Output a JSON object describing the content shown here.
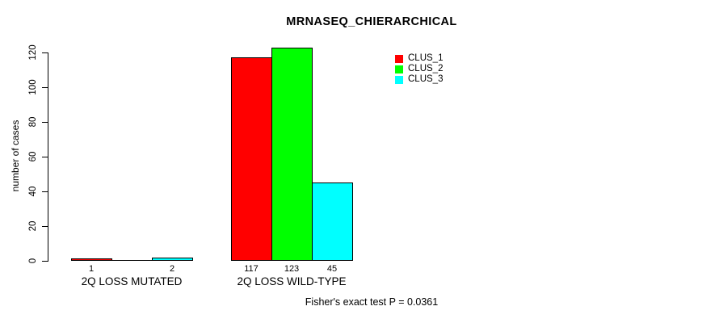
{
  "chart_data": {
    "type": "bar",
    "title": "MRNASEQ_CHIERARCHICAL",
    "xlabel": "",
    "ylabel": "number of cases",
    "ylim": [
      0,
      120
    ],
    "yticks": [
      0,
      20,
      40,
      60,
      80,
      100,
      120
    ],
    "categories": [
      "2Q LOSS MUTATED",
      "2Q LOSS WILD-TYPE"
    ],
    "series": [
      {
        "name": "CLUS_1",
        "color": "#ff0000",
        "values": [
          1,
          117
        ]
      },
      {
        "name": "CLUS_2",
        "color": "#00ff00",
        "values": [
          0,
          123
        ]
      },
      {
        "name": "CLUS_3",
        "color": "#00ffff",
        "values": [
          2,
          45
        ]
      }
    ],
    "bar_value_labels": [
      [
        "1",
        "",
        "2"
      ],
      [
        "117",
        "123",
        "45"
      ]
    ],
    "grid": false,
    "legend_position": "top-right",
    "bar_border_color": "#000000",
    "annotation": "Fisher's exact test P = 0.0361"
  }
}
